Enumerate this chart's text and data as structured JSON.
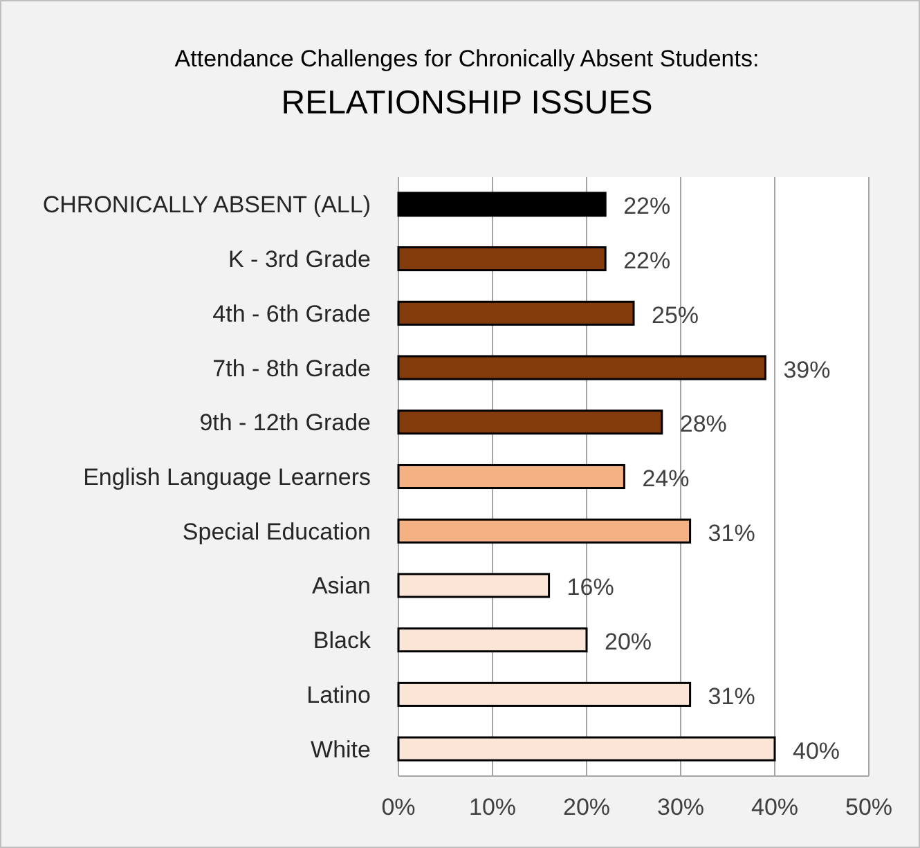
{
  "chart_data": {
    "type": "bar",
    "orientation": "horizontal",
    "title": "Attendance Challenges for Chronically Absent Students:",
    "subtitle": "RELATIONSHIP ISSUES",
    "categories": [
      "CHRONICALLY ABSENT (ALL)",
      "K - 3rd Grade",
      "4th - 6th Grade",
      "7th - 8th Grade",
      "9th - 12th Grade",
      "English Language Learners",
      "Special Education",
      "Asian",
      "Black",
      "Latino",
      "White"
    ],
    "values": [
      22,
      22,
      25,
      39,
      28,
      24,
      31,
      16,
      20,
      31,
      40
    ],
    "colors": [
      "#000000",
      "#843c0c",
      "#843c0c",
      "#843c0c",
      "#843c0c",
      "#f4b183",
      "#f4b183",
      "#fbe5d6",
      "#fbe5d6",
      "#fbe5d6",
      "#fbe5d6"
    ],
    "value_labels": [
      "22%",
      "22%",
      "25%",
      "39%",
      "28%",
      "24%",
      "31%",
      "16%",
      "20%",
      "31%",
      "40%"
    ],
    "xlim": [
      0,
      50
    ],
    "xticks": [
      {
        "value": 0,
        "label": "0%"
      },
      {
        "value": 10,
        "label": "10%"
      },
      {
        "value": 20,
        "label": "20%"
      },
      {
        "value": 30,
        "label": "30%"
      },
      {
        "value": 40,
        "label": "40%"
      },
      {
        "value": 50,
        "label": "50%"
      }
    ],
    "grid": "x"
  }
}
